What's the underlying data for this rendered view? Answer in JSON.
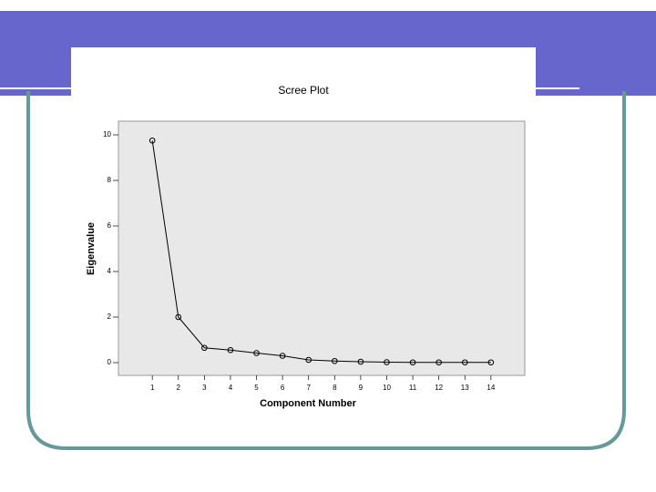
{
  "chart_data": {
    "type": "line",
    "title": "Scree Plot",
    "x_label": "Component Number",
    "y_label": "Eigenvalue",
    "x": [
      1,
      2,
      3,
      4,
      5,
      6,
      7,
      8,
      9,
      10,
      11,
      12,
      13,
      14
    ],
    "series": [
      {
        "name": "Eigenvalue",
        "color": "#000000",
        "values": [
          9.75,
          2.0,
          0.65,
          0.55,
          0.42,
          0.3,
          0.12,
          0.07,
          0.04,
          0.02,
          0.01,
          0.01,
          0.01,
          0.01
        ]
      }
    ],
    "xlim": [
      -0.3,
      15.3
    ],
    "xticks": [
      1,
      2,
      3,
      4,
      5,
      6,
      7,
      8,
      9,
      10,
      11,
      12,
      13,
      14
    ],
    "ylim": [
      -0.56,
      10.6
    ],
    "yticks": [
      0,
      2,
      4,
      6,
      8,
      10
    ],
    "markers": true,
    "grid": false
  }
}
